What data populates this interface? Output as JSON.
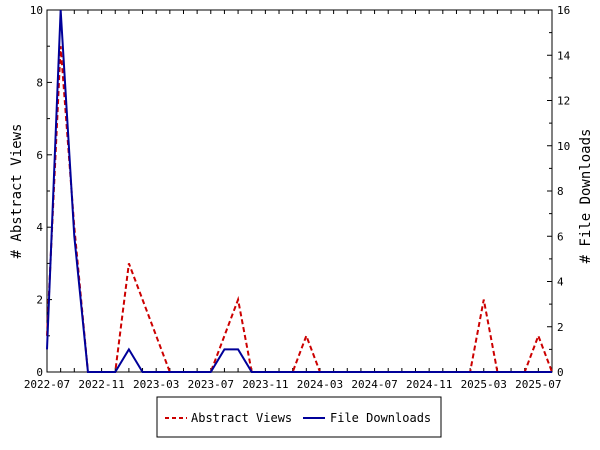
{
  "chart_data": {
    "type": "line",
    "x": [
      "2022-07",
      "2022-08",
      "2022-09",
      "2022-10",
      "2022-11",
      "2022-12",
      "2023-01",
      "2023-02",
      "2023-03",
      "2023-04",
      "2023-05",
      "2023-06",
      "2023-07",
      "2023-08",
      "2023-09",
      "2023-10",
      "2023-11",
      "2023-12",
      "2024-01",
      "2024-02",
      "2024-03",
      "2024-04",
      "2024-05",
      "2024-06",
      "2024-07",
      "2024-08",
      "2024-09",
      "2024-10",
      "2024-11",
      "2024-12",
      "2025-01",
      "2025-02",
      "2025-03",
      "2025-04",
      "2025-05",
      "2025-06",
      "2025-07",
      "2025-08"
    ],
    "x_tick_labels": [
      "2022-07",
      "2022-11",
      "2023-03",
      "2023-07",
      "2023-11",
      "2024-03",
      "2024-07",
      "2024-11",
      "2025-03",
      "2025-07"
    ],
    "series": [
      {
        "name": "Abstract Views",
        "axis": "left",
        "color": "#cc0000",
        "dash": true,
        "values": [
          1,
          9,
          4,
          0,
          0,
          0,
          3,
          2,
          1,
          0,
          0,
          0,
          0,
          1,
          2,
          0,
          0,
          0,
          0,
          1,
          0,
          0,
          0,
          0,
          0,
          0,
          0,
          0,
          0,
          0,
          0,
          0,
          2,
          0,
          0,
          0,
          1,
          0
        ]
      },
      {
        "name": "File Downloads",
        "axis": "right",
        "color": "#000099",
        "dash": false,
        "values": [
          1,
          16,
          6,
          0,
          0,
          0,
          1,
          0,
          0,
          0,
          0,
          0,
          0,
          1,
          1,
          0,
          0,
          0,
          0,
          0,
          0,
          0,
          0,
          0,
          0,
          0,
          0,
          0,
          0,
          0,
          0,
          0,
          0,
          0,
          0,
          0,
          0,
          0
        ]
      }
    ],
    "ylabel": "# Abstract Views",
    "y2label": "# File Downloads",
    "ylim": [
      0,
      10
    ],
    "y2lim": [
      0,
      16
    ],
    "y_ticks": [
      0,
      2,
      4,
      6,
      8,
      10
    ],
    "y2_ticks": [
      0,
      2,
      4,
      6,
      8,
      10,
      12,
      14,
      16
    ],
    "grid": false,
    "legend_position": "bottom"
  }
}
